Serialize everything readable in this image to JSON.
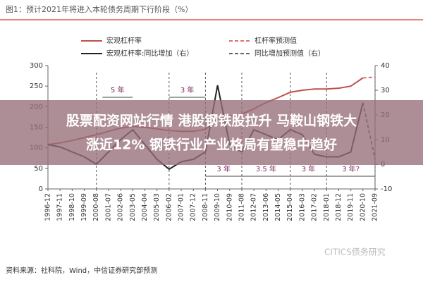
{
  "chart_data": {
    "type": "line",
    "title": "图1：预计2021年将进入本轮债务周期下行阶段（%）",
    "categories": [
      "1996-12",
      "1997-11",
      "1998-10",
      "1999-09",
      "2000-08",
      "2001-07",
      "2002-06",
      "2003-05",
      "2004-04",
      "2005-03",
      "2006-02",
      "2007-01",
      "2007-12",
      "2008-11",
      "2009-10",
      "2010-09",
      "2011-08",
      "2012-07",
      "2013-06",
      "2014-05",
      "2015-04",
      "2016-03",
      "2017-02",
      "2018-01",
      "2018-12",
      "2019-11",
      "2020-10",
      "2021-09"
    ],
    "series": [
      {
        "name": "宏观杠杆率",
        "color": "#c0504d",
        "dashed": false,
        "values": [
          108,
          112,
          118,
          125,
          132,
          140,
          148,
          152,
          150,
          146,
          142,
          140,
          140,
          145,
          170,
          178,
          182,
          195,
          210,
          222,
          235,
          240,
          243,
          243,
          245,
          250,
          270,
          null
        ]
      },
      {
        "name": "杠杆率预测值",
        "color": "#e07070",
        "dashed": true,
        "values": [
          null,
          null,
          null,
          null,
          null,
          null,
          null,
          null,
          null,
          null,
          null,
          null,
          null,
          null,
          null,
          null,
          null,
          null,
          null,
          null,
          null,
          null,
          null,
          null,
          null,
          null,
          270,
          272
        ]
      },
      {
        "name": "宏观杠杆率:同比增加（右）",
        "color": "#222222",
        "dashed": false,
        "axis": "y2",
        "values": [
          8,
          7,
          5,
          3,
          0,
          5,
          10,
          14,
          8,
          2,
          -2,
          1,
          2,
          5,
          32,
          8,
          5,
          14,
          12,
          10,
          14,
          12,
          4,
          3,
          3,
          5,
          25,
          null
        ]
      },
      {
        "name": "同比增加预测值（右）",
        "color": "#666666",
        "dashed": true,
        "axis": "y2",
        "values": [
          null,
          null,
          null,
          null,
          null,
          null,
          null,
          null,
          null,
          null,
          null,
          null,
          null,
          null,
          null,
          null,
          null,
          null,
          null,
          null,
          null,
          null,
          null,
          null,
          null,
          null,
          25,
          2
        ]
      }
    ],
    "ylim": [
      0,
      300
    ],
    "yticks": [
      0,
      50,
      100,
      150,
      200,
      250,
      300
    ],
    "y2lim": [
      -10,
      40
    ],
    "y2ticks": [
      -10,
      0,
      10,
      20,
      30,
      40
    ],
    "annotations": [
      "5 年",
      "3 年",
      "3 年",
      "3.5 年",
      "3 年",
      "3 年?"
    ],
    "source": "资料来源：社科院，Wind，中信证券研究部预测",
    "watermark": "CITICS债务研究",
    "banner": [
      "股票配资网站行情 港股钢铁股拉升 马鞍山钢铁大",
      "涨近12% 钢铁行业产业格局有望稳中趋好"
    ]
  }
}
